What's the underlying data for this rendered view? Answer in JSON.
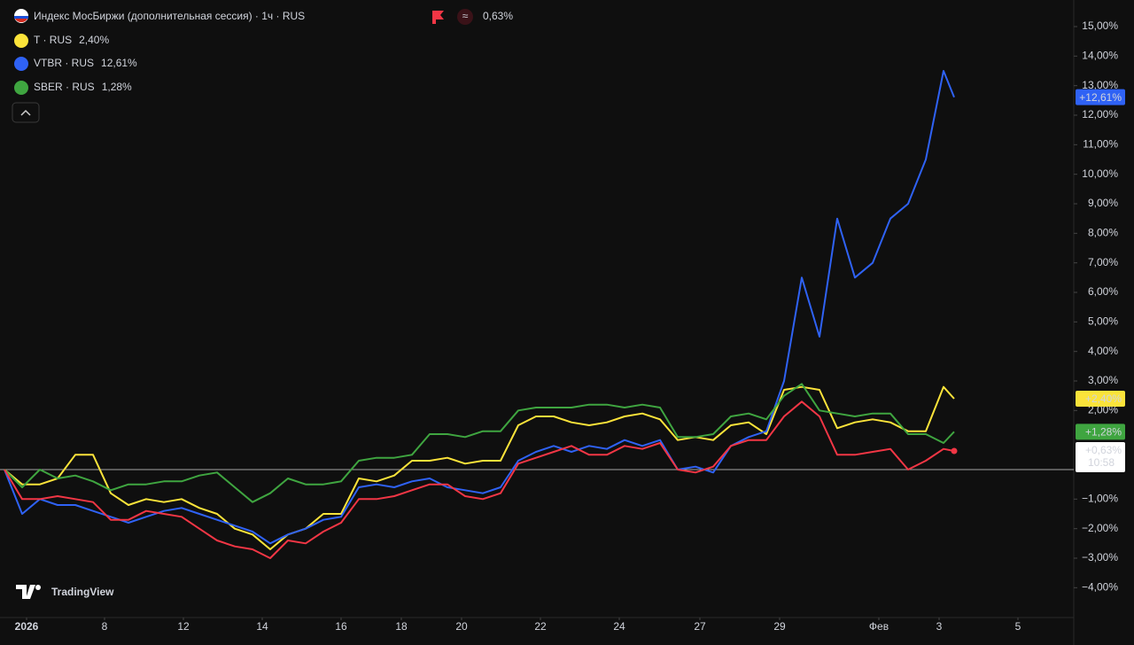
{
  "chart_data": {
    "type": "line",
    "title": "Индекс МосБиржи (дополнительная сессия) · 1ч · RUS",
    "watermark": "TradingView",
    "x": [
      0,
      2,
      4,
      6,
      8,
      10,
      12,
      14,
      16,
      18,
      20,
      22,
      24,
      26,
      28,
      30,
      32,
      34,
      36,
      38,
      40,
      42,
      44,
      46,
      48,
      50,
      52,
      54,
      56,
      58,
      60,
      62,
      64,
      66,
      68,
      70,
      72,
      74,
      76,
      78,
      80,
      82,
      84,
      86,
      88,
      90,
      92,
      94,
      96,
      98,
      100,
      102,
      104,
      106,
      107.2
    ],
    "xlim": [
      0,
      120.5
    ],
    "xticks": [
      {
        "value": 2.5,
        "label": "2026"
      },
      {
        "value": 11.3,
        "label": "8"
      },
      {
        "value": 20.2,
        "label": "12"
      },
      {
        "value": 29.1,
        "label": "14"
      },
      {
        "value": 38,
        "label": "16"
      },
      {
        "value": 44.8,
        "label": "18"
      },
      {
        "value": 51.6,
        "label": "20"
      },
      {
        "value": 60.5,
        "label": "22"
      },
      {
        "value": 69.4,
        "label": "24"
      },
      {
        "value": 78.5,
        "label": "27"
      },
      {
        "value": 87.5,
        "label": "29"
      },
      {
        "value": 98.7,
        "label": "Фев"
      },
      {
        "value": 105.5,
        "label": "3"
      },
      {
        "value": 114.4,
        "label": "5"
      }
    ],
    "ylim": [
      -5.1,
      15.9
    ],
    "yticks": [
      {
        "value": 15,
        "label": "15,00%"
      },
      {
        "value": 14,
        "label": "14,00%"
      },
      {
        "value": 13,
        "label": "13,00%"
      },
      {
        "value": 12,
        "label": "12,00%"
      },
      {
        "value": 11,
        "label": "11,00%"
      },
      {
        "value": 10,
        "label": "10,00%"
      },
      {
        "value": 9,
        "label": "9,00%"
      },
      {
        "value": 8,
        "label": "8,00%"
      },
      {
        "value": 7,
        "label": "7,00%"
      },
      {
        "value": 6,
        "label": "6,00%"
      },
      {
        "value": 5,
        "label": "5,00%"
      },
      {
        "value": 4,
        "label": "4,00%"
      },
      {
        "value": 3,
        "label": "3,00%"
      },
      {
        "value": 2,
        "label": "2,00%"
      },
      {
        "value": -1,
        "label": "−1,00%"
      },
      {
        "value": -2,
        "label": "−2,00%"
      },
      {
        "value": -3,
        "label": "−3,00%"
      },
      {
        "value": -4,
        "label": "−4,00%"
      }
    ],
    "series": [
      {
        "name": "T · RUS",
        "color": "#fbe33a",
        "last_label": "2,40%",
        "axis_label": "+2,40%",
        "values": [
          0,
          -0.5,
          -0.5,
          -0.3,
          0.5,
          0.5,
          -0.8,
          -1.2,
          -1.0,
          -1.1,
          -1.0,
          -1.3,
          -1.5,
          -2.0,
          -2.2,
          -2.7,
          -2.2,
          -2.0,
          -1.5,
          -1.5,
          -0.3,
          -0.4,
          -0.2,
          0.3,
          0.3,
          0.4,
          0.2,
          0.3,
          0.3,
          1.5,
          1.8,
          1.8,
          1.6,
          1.5,
          1.6,
          1.8,
          1.9,
          1.7,
          1.0,
          1.1,
          1.0,
          1.5,
          1.6,
          1.2,
          2.7,
          2.8,
          2.7,
          1.4,
          1.6,
          1.7,
          1.6,
          1.3,
          1.3,
          2.8,
          2.4
        ]
      },
      {
        "name": "VTBR · RUS",
        "color": "#2f62f5",
        "last_label": "12,61%",
        "axis_label": "+12,61%",
        "values": [
          0,
          -1.5,
          -1.0,
          -1.2,
          -1.2,
          -1.4,
          -1.6,
          -1.8,
          -1.6,
          -1.4,
          -1.3,
          -1.5,
          -1.7,
          -1.9,
          -2.1,
          -2.5,
          -2.2,
          -2.0,
          -1.7,
          -1.6,
          -0.6,
          -0.5,
          -0.6,
          -0.4,
          -0.3,
          -0.6,
          -0.7,
          -0.8,
          -0.6,
          0.3,
          0.6,
          0.8,
          0.6,
          0.8,
          0.7,
          1.0,
          0.8,
          1.0,
          0.0,
          0.1,
          -0.1,
          0.8,
          1.1,
          1.3,
          3.0,
          6.5,
          4.5,
          8.5,
          6.5,
          7.0,
          8.5,
          9.0,
          10.5,
          13.5,
          12.61
        ]
      },
      {
        "name": "SBER · RUS",
        "color": "#3fa540",
        "last_label": "1,28%",
        "axis_label": "+1,28%",
        "values": [
          0,
          -0.6,
          0.0,
          -0.3,
          -0.2,
          -0.4,
          -0.7,
          -0.5,
          -0.5,
          -0.4,
          -0.4,
          -0.2,
          -0.1,
          -0.6,
          -1.1,
          -0.8,
          -0.3,
          -0.5,
          -0.5,
          -0.4,
          0.3,
          0.4,
          0.4,
          0.5,
          1.2,
          1.2,
          1.1,
          1.3,
          1.3,
          2.0,
          2.1,
          2.1,
          2.1,
          2.2,
          2.2,
          2.1,
          2.2,
          2.1,
          1.1,
          1.1,
          1.2,
          1.8,
          1.9,
          1.7,
          2.5,
          2.9,
          2.0,
          1.9,
          1.8,
          1.9,
          1.9,
          1.2,
          1.2,
          0.9,
          1.28
        ]
      },
      {
        "name": "Индекс МосБиржи",
        "color": "#f23645",
        "last_label": "0,63%",
        "axis_label": "+0,63%",
        "time_label": "10:58",
        "values": [
          0,
          -1.0,
          -1.0,
          -0.9,
          -1.0,
          -1.1,
          -1.7,
          -1.7,
          -1.4,
          -1.5,
          -1.6,
          -2.0,
          -2.4,
          -2.6,
          -2.7,
          -3.0,
          -2.4,
          -2.5,
          -2.1,
          -1.8,
          -1.0,
          -1.0,
          -0.9,
          -0.7,
          -0.5,
          -0.5,
          -0.9,
          -1.0,
          -0.8,
          0.2,
          0.4,
          0.6,
          0.8,
          0.5,
          0.5,
          0.8,
          0.7,
          0.9,
          0.0,
          -0.1,
          0.1,
          0.8,
          1.0,
          1.0,
          1.8,
          2.3,
          1.8,
          0.5,
          0.5,
          0.6,
          0.7,
          0.0,
          0.3,
          0.7,
          0.63
        ]
      }
    ]
  }
}
